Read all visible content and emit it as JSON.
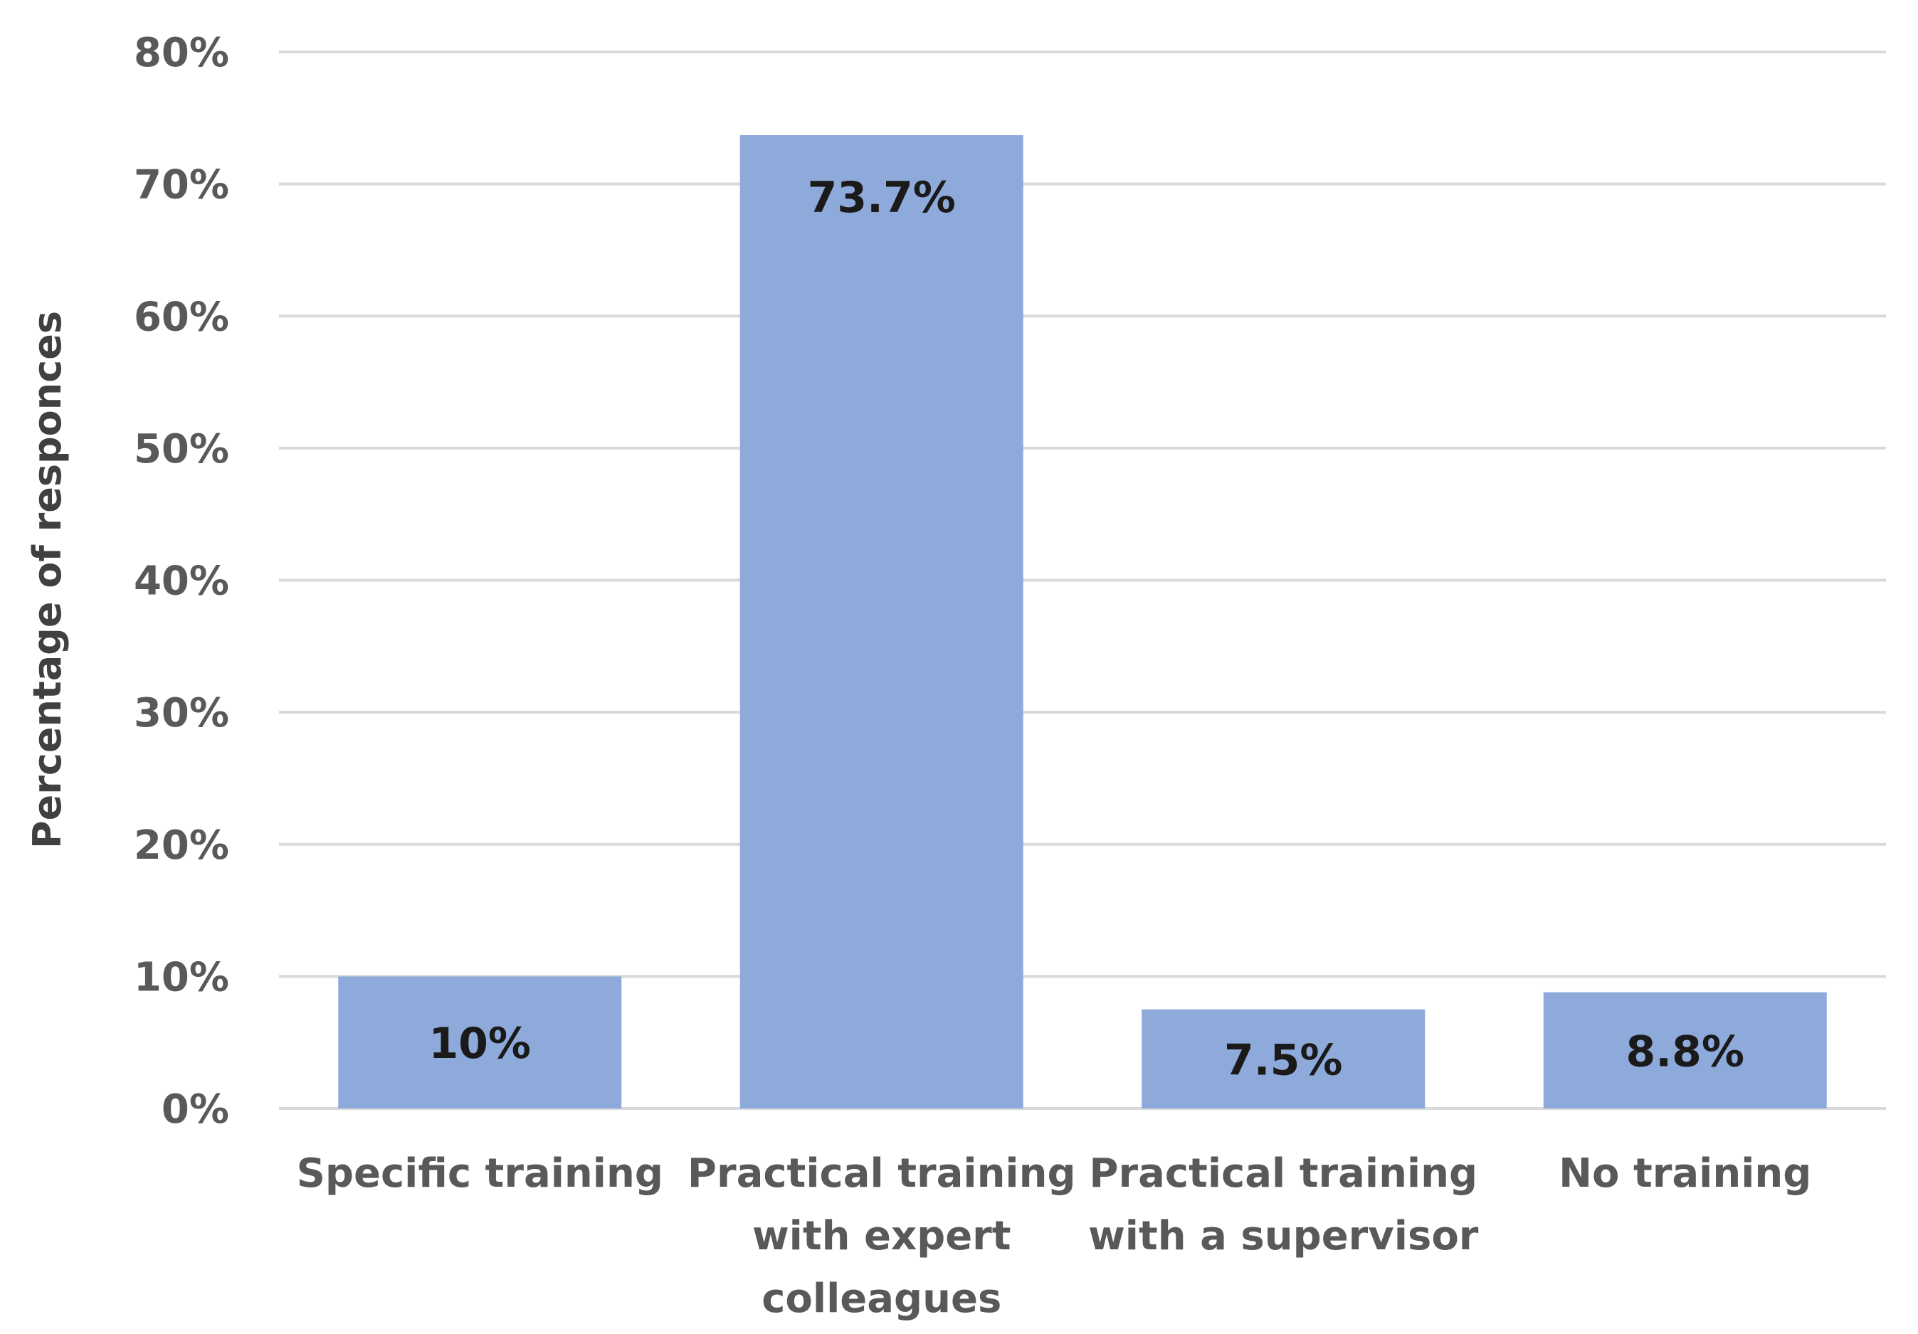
{
  "chart_data": {
    "type": "bar",
    "categories": [
      [
        "Specific training"
      ],
      [
        "Practical training",
        "with expert",
        "colleagues"
      ],
      [
        "Practical training",
        "with a supervisor"
      ],
      [
        "No training"
      ]
    ],
    "values": [
      10,
      73.7,
      7.5,
      8.8
    ],
    "data_labels": [
      "10%",
      "73.7%",
      "7.5%",
      "8.8%"
    ],
    "title": "",
    "xlabel": "",
    "ylabel": "Percentage of responces",
    "ylim": [
      0,
      80
    ],
    "yticks": [
      "0%",
      "10%",
      "20%",
      "30%",
      "40%",
      "50%",
      "60%",
      "70%",
      "80%"
    ],
    "grid": true,
    "bar_color": "#8eaadb"
  }
}
